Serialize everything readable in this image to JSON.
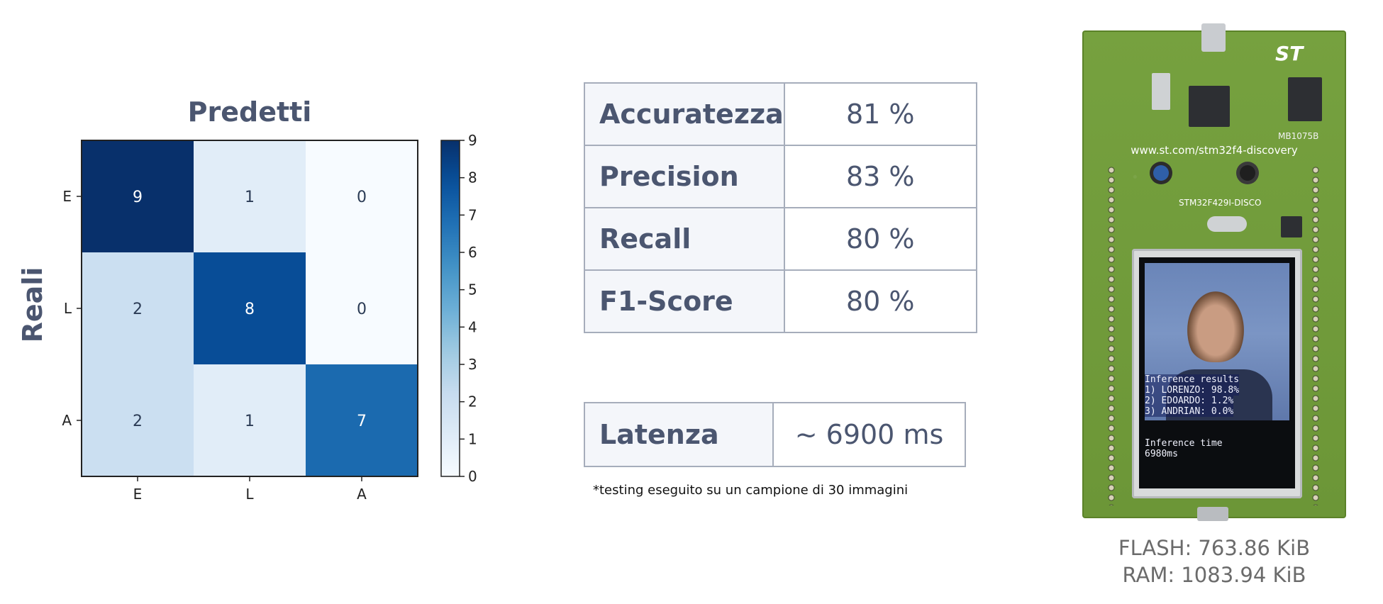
{
  "chart_data": {
    "type": "heatmap",
    "title": "Predetti",
    "ylabel": "Reali",
    "x_categories": [
      "E",
      "L",
      "A"
    ],
    "y_categories": [
      "E",
      "L",
      "A"
    ],
    "values": [
      [
        9,
        1,
        0
      ],
      [
        2,
        8,
        0
      ],
      [
        2,
        1,
        7
      ]
    ],
    "colorbar": {
      "min": 0,
      "max": 9,
      "ticks": [
        0,
        1,
        2,
        3,
        4,
        5,
        6,
        7,
        8,
        9
      ],
      "colormap": "Blues"
    }
  },
  "metrics": [
    {
      "label": "Accuratezza",
      "value": "81 %"
    },
    {
      "label": "Precision",
      "value": "83 %"
    },
    {
      "label": "Recall",
      "value": "80 %"
    },
    {
      "label": "F1-Score",
      "value": "80 %"
    }
  ],
  "latency": {
    "label": "Latenza",
    "value": "~ 6900 ms"
  },
  "note": "*testing eseguito su un campione di 30 immagini",
  "board": {
    "logo": "ST",
    "model": "MB1075B",
    "url": "www.st.com/stm32f4-discovery",
    "name": "STM32F429I-DISCO",
    "screen": {
      "title": "Inference results",
      "results": [
        "1) LORENZO: 98.8%",
        "2) EDOARDO: 1.2%",
        "3) ANDRIAN: 0.0%"
      ],
      "time_label": "Inference time",
      "time_value": "6980ms"
    },
    "flash": "FLASH: 763.86 KiB",
    "ram": "RAM: 1083.94 KiB"
  }
}
